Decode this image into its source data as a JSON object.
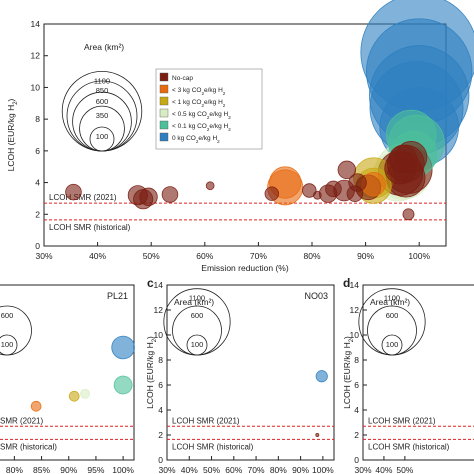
{
  "chart_data": [
    {
      "type": "scatter",
      "panel": "a",
      "xlabel": "Emission reduction (%)",
      "ylabel": "LCOH (EUR/kg H₂)",
      "xlim": [
        30,
        105
      ],
      "ylim": [
        0,
        14
      ],
      "xticks": [
        "30%",
        "40%",
        "50%",
        "60%",
        "70%",
        "80%",
        "90%",
        "100%"
      ],
      "yticks": [
        "0",
        "2",
        "4",
        "6",
        "8",
        "10",
        "12",
        "14"
      ],
      "reference_lines": [
        {
          "label": "LCOH SMR (2021)",
          "y": 2.7
        },
        {
          "label": "LCOH SMR (historical)",
          "y": 1.65
        }
      ],
      "size_legend": {
        "title": "Area (km²)",
        "values": [
          "1100",
          "850",
          "600",
          "350",
          "100"
        ]
      },
      "legend": [
        {
          "label": "No-cap",
          "color": "#7a1e12"
        },
        {
          "label": "< 3 kg CO₂e/kg H₂",
          "color": "#e86a10"
        },
        {
          "label": "< 1 kg CO₂e/kg H₂",
          "color": "#c8a812"
        },
        {
          "label": "< 0.5 kg CO₂e/kg H₂",
          "color": "#d8ecc4"
        },
        {
          "label": "< 0.1 kg CO₂e/kg H₂",
          "color": "#4cc09a"
        },
        {
          "label": "0 kg CO₂e/kg H₂",
          "color": "#2d7fc0"
        }
      ],
      "points": [
        {
          "x": 35.5,
          "y": 3.4,
          "area": 20,
          "cat": 0
        },
        {
          "x": 47.5,
          "y": 3.2,
          "area": 30,
          "cat": 0
        },
        {
          "x": 48.5,
          "y": 2.95,
          "area": 30,
          "cat": 0
        },
        {
          "x": 49.5,
          "y": 3.1,
          "area": 25,
          "cat": 0
        },
        {
          "x": 53.5,
          "y": 3.25,
          "area": 20,
          "cat": 0
        },
        {
          "x": 61,
          "y": 3.8,
          "area": 5,
          "cat": 0
        },
        {
          "x": 72.5,
          "y": 3.3,
          "area": 15,
          "cat": 0
        },
        {
          "x": 75,
          "y": 3.7,
          "area": 100,
          "cat": 1
        },
        {
          "x": 75,
          "y": 4.0,
          "area": 80,
          "cat": 1
        },
        {
          "x": 79.5,
          "y": 3.5,
          "area": 15,
          "cat": 0
        },
        {
          "x": 81,
          "y": 3.2,
          "area": 5,
          "cat": 0
        },
        {
          "x": 83,
          "y": 3.3,
          "area": 25,
          "cat": 0
        },
        {
          "x": 84,
          "y": 3.6,
          "area": 20,
          "cat": 0
        },
        {
          "x": 86,
          "y": 3.5,
          "area": 35,
          "cat": 0
        },
        {
          "x": 86.5,
          "y": 4.8,
          "area": 25,
          "cat": 0
        },
        {
          "x": 88,
          "y": 3.3,
          "area": 20,
          "cat": 0
        },
        {
          "x": 88.5,
          "y": 4.0,
          "area": 25,
          "cat": 0
        },
        {
          "x": 90.5,
          "y": 3.7,
          "area": 50,
          "cat": 0
        },
        {
          "x": 91.5,
          "y": 3.8,
          "area": 100,
          "cat": 2
        },
        {
          "x": 91.5,
          "y": 4.3,
          "area": 130,
          "cat": 2
        },
        {
          "x": 91.5,
          "y": 3.9,
          "area": 45,
          "cat": 1
        },
        {
          "x": 96,
          "y": 4.4,
          "area": 200,
          "cat": 3
        },
        {
          "x": 97,
          "y": 4.7,
          "area": 250,
          "cat": 3
        },
        {
          "x": 96.5,
          "y": 4.6,
          "area": 160,
          "cat": 0
        },
        {
          "x": 97.5,
          "y": 4.3,
          "area": 120,
          "cat": 0
        },
        {
          "x": 97.5,
          "y": 5.2,
          "area": 110,
          "cat": 0
        },
        {
          "x": 98,
          "y": 4.8,
          "area": 180,
          "cat": 0
        },
        {
          "x": 98.5,
          "y": 5.6,
          "area": 80,
          "cat": 0
        },
        {
          "x": 97,
          "y": 5.5,
          "area": 60,
          "cat": 0
        },
        {
          "x": 96.5,
          "y": 4.9,
          "area": 80,
          "cat": 0
        },
        {
          "x": 98,
          "y": 2.0,
          "area": 10,
          "cat": 0
        },
        {
          "x": 98.5,
          "y": 7.0,
          "area": 200,
          "cat": 4
        },
        {
          "x": 99,
          "y": 5.8,
          "area": 170,
          "cat": 4
        },
        {
          "x": 99.5,
          "y": 6.5,
          "area": 250,
          "cat": 4
        },
        {
          "x": 99.5,
          "y": 8.7,
          "area": 700,
          "cat": 5
        },
        {
          "x": 100,
          "y": 9.5,
          "area": 800,
          "cat": 5
        },
        {
          "x": 100,
          "y": 7.5,
          "area": 500,
          "cat": 5
        },
        {
          "x": 100,
          "y": 12.2,
          "area": 1100,
          "cat": 5
        },
        {
          "x": 100,
          "y": 11.0,
          "area": 900,
          "cat": 5
        }
      ]
    },
    {
      "type": "scatter",
      "panel": "",
      "title": "PL21",
      "xlabel": "Emission reduction (%)",
      "xlim": [
        70,
        102
      ],
      "ylim": [
        0,
        14
      ],
      "xticks": [
        "75%",
        "80%",
        "85%",
        "90%",
        "95%",
        "100%"
      ],
      "reference_lines": [
        {
          "label": "SMR (2021)",
          "y": 2.7
        },
        {
          "label": "SMR (historical)",
          "y": 1.65
        }
      ],
      "size_legend": {
        "values": [
          "600",
          "100"
        ]
      },
      "points": [
        {
          "x": 100,
          "y": 9.0,
          "area": 160,
          "cat": 5
        },
        {
          "x": 100,
          "y": 6.0,
          "area": 100,
          "cat": 4
        },
        {
          "x": 91,
          "y": 5.1,
          "area": 30,
          "cat": 2
        },
        {
          "x": 93,
          "y": 5.3,
          "area": 25,
          "cat": 3
        },
        {
          "x": 84,
          "y": 4.3,
          "area": 30,
          "cat": 1
        }
      ]
    },
    {
      "type": "scatter",
      "panel": "c",
      "title": "NO03",
      "xlabel": "Emission reduction (%)",
      "ylabel": "LCOH (EUR/kg H₂)",
      "xlim": [
        30,
        105
      ],
      "ylim": [
        0,
        14
      ],
      "xticks": [
        "30%",
        "40%",
        "50%",
        "60%",
        "70%",
        "80%",
        "90%",
        "100%"
      ],
      "yticks": [
        "0",
        "2",
        "4",
        "6",
        "8",
        "10",
        "12",
        "14"
      ],
      "reference_lines": [
        {
          "label": "LCOH SMR (2021)",
          "y": 2.7
        },
        {
          "label": "LCOH SMR (historical)",
          "y": 1.65
        }
      ],
      "size_legend": {
        "title": "Area (km²)",
        "values": [
          "1100",
          "600",
          "100"
        ]
      },
      "points": [
        {
          "x": 99.5,
          "y": 6.7,
          "area": 40,
          "cat": 5
        },
        {
          "x": 97.5,
          "y": 2.0,
          "area": 3,
          "cat": 0
        }
      ]
    },
    {
      "type": "scatter",
      "panel": "d",
      "ylabel": "LCOH (EUR/kg H₂)",
      "xlim": [
        30,
        105
      ],
      "ylim": [
        0,
        14
      ],
      "xticks": [
        "30%",
        "40%",
        "50%"
      ],
      "yticks": [
        "0",
        "2",
        "4",
        "6",
        "8",
        "10",
        "12",
        "14"
      ],
      "reference_lines": [
        {
          "label": "LCOH SMR (2021)",
          "y": 2.7
        },
        {
          "label": "LCOH SMR (historical)",
          "y": 1.65
        }
      ],
      "size_legend": {
        "title": "Area (km²)",
        "values": [
          "1100",
          "600",
          "100"
        ]
      },
      "points": []
    }
  ]
}
